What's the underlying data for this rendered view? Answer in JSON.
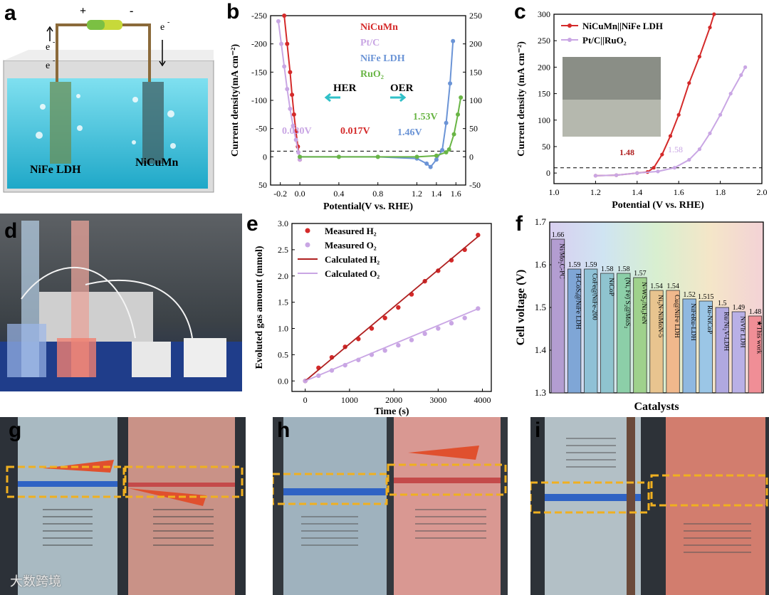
{
  "panel_labels": {
    "a": "a",
    "b": "b",
    "c": "c",
    "d": "d",
    "e": "e",
    "f": "f",
    "g": "g",
    "h": "h",
    "i": "i"
  },
  "panel_a": {
    "plus": "+",
    "minus": "-",
    "e_left": "e",
    "e_left2": "e",
    "e_right": "e",
    "sup": "-",
    "left_label": "NiFe LDH",
    "right_label": "NiCuMn"
  },
  "panel_b": {
    "ylabel": "Current density(mA cm⁻²)",
    "xlabel": "Potential(V vs. RHE)",
    "hor": "HER",
    "oer": "OER",
    "ann": [
      "0.030V",
      "0.017V",
      "1.46V",
      "1.53V"
    ],
    "legend": [
      "NiCuMn",
      "Pt/C",
      "NiFe LDH",
      "RuO₂"
    ]
  },
  "panel_c": {
    "ylabel": "Current density (mA cm⁻²)",
    "xlabel": "Potential (V vs. RHE)",
    "legend": [
      "NiCuMn||NiFe LDH",
      "Pt/C||RuO₂"
    ],
    "ann": [
      "1.48",
      "1.58"
    ]
  },
  "panel_e": {
    "ylabel": "Evoluted gas amount (mmol)",
    "xlabel": "Time (s)",
    "legend": [
      "Measured H₂",
      "Measured O₂",
      "Calculated H₂",
      "Calculated O₂"
    ]
  },
  "panel_f": {
    "ylabel": "Cell voltage (V)",
    "xlabel": "Catalysts"
  },
  "watermark": "大数跨境",
  "chart_data": [
    {
      "panel": "b",
      "type": "line",
      "xlabel": "Potential(V vs. RHE)",
      "ylabel": "Current density(mA cm⁻²)",
      "xlim": [
        -0.3,
        1.7
      ],
      "ylim_left": [
        50,
        -250
      ],
      "ylim_right": [
        -50,
        250
      ],
      "xticks": [
        -0.2,
        0.0,
        0.4,
        0.8,
        1.2,
        1.4,
        1.6
      ],
      "yticks_left": [
        -250,
        -200,
        -150,
        -100,
        -50,
        0,
        50
      ],
      "yticks_right": [
        -50,
        0,
        50,
        100,
        150,
        200,
        250
      ],
      "series": [
        {
          "name": "NiCuMn",
          "color": "#d42a2a",
          "axis": "left",
          "x": [
            -0.16,
            -0.13,
            -0.1,
            -0.08,
            -0.06,
            -0.04,
            -0.02,
            0.0
          ],
          "y": [
            -250,
            -200,
            -150,
            -110,
            -75,
            -45,
            -18,
            5
          ]
        },
        {
          "name": "Pt/C",
          "color": "#c9a6e4",
          "axis": "left",
          "x": [
            -0.22,
            -0.19,
            -0.16,
            -0.13,
            -0.1,
            -0.07,
            -0.04,
            -0.015,
            0.0
          ],
          "y": [
            -240,
            -200,
            -160,
            -120,
            -85,
            -55,
            -30,
            -8,
            5
          ]
        },
        {
          "name": "NiFe LDH",
          "color": "#6b94d6",
          "axis": "right",
          "x": [
            0.0,
            0.4,
            0.8,
            1.2,
            1.3,
            1.34,
            1.4,
            1.46,
            1.5,
            1.54,
            1.57
          ],
          "y": [
            0,
            0,
            0,
            -3,
            -12,
            -18,
            -5,
            12,
            60,
            130,
            205
          ]
        },
        {
          "name": "RuO₂",
          "color": "#69b545",
          "axis": "right",
          "x": [
            0.0,
            0.4,
            0.8,
            1.2,
            1.4,
            1.5,
            1.53,
            1.58,
            1.62,
            1.65
          ],
          "y": [
            0,
            0,
            0,
            0,
            2,
            8,
            13,
            40,
            75,
            105
          ]
        }
      ],
      "annotations": [
        "0.030V",
        "0.017V",
        "1.46V",
        "1.53V"
      ]
    },
    {
      "panel": "c",
      "type": "line",
      "xlabel": "Potential (V vs. RHE)",
      "ylabel": "Current density (mA cm⁻²)",
      "xlim": [
        1.0,
        2.0
      ],
      "ylim": [
        -20,
        300
      ],
      "xticks": [
        1.0,
        1.2,
        1.4,
        1.6,
        1.8,
        2.0
      ],
      "yticks": [
        0,
        50,
        100,
        150,
        200,
        250,
        300
      ],
      "series": [
        {
          "name": "NiCuMn||NiFe LDH",
          "color": "#d42a2a",
          "x": [
            1.2,
            1.3,
            1.4,
            1.45,
            1.48,
            1.52,
            1.56,
            1.6,
            1.65,
            1.7,
            1.75,
            1.77
          ],
          "y": [
            -5,
            -4,
            0,
            2,
            10,
            35,
            70,
            110,
            170,
            220,
            275,
            300
          ]
        },
        {
          "name": "Pt/C||RuO₂",
          "color": "#c9a6e4",
          "x": [
            1.2,
            1.3,
            1.4,
            1.5,
            1.58,
            1.65,
            1.7,
            1.75,
            1.8,
            1.85,
            1.9,
            1.92
          ],
          "y": [
            -5,
            -4,
            0,
            3,
            10,
            25,
            45,
            75,
            110,
            150,
            185,
            200
          ]
        }
      ],
      "annotations": [
        "1.48",
        "1.58"
      ]
    },
    {
      "panel": "e",
      "type": "scatter",
      "xlabel": "Time (s)",
      "ylabel": "Evoluted gas amount (mmol)",
      "xlim": [
        -300,
        4200
      ],
      "ylim": [
        -0.2,
        3.0
      ],
      "xticks": [
        0,
        1000,
        2000,
        3000,
        4000
      ],
      "yticks": [
        0.0,
        0.5,
        1.0,
        1.5,
        2.0,
        2.5,
        3.0
      ],
      "series": [
        {
          "name": "Measured H₂",
          "color": "#d42a2a",
          "marker": true,
          "x": [
            0,
            300,
            600,
            900,
            1200,
            1500,
            1800,
            2100,
            2400,
            2700,
            3000,
            3300,
            3600,
            3900
          ],
          "y": [
            0,
            0.25,
            0.45,
            0.65,
            0.8,
            1.0,
            1.2,
            1.4,
            1.65,
            1.9,
            2.1,
            2.3,
            2.5,
            2.78
          ]
        },
        {
          "name": "Measured O₂",
          "color": "#c9a6e4",
          "marker": true,
          "x": [
            0,
            300,
            600,
            900,
            1200,
            1500,
            1800,
            2100,
            2400,
            2700,
            3000,
            3300,
            3600,
            3900
          ],
          "y": [
            0,
            0.1,
            0.2,
            0.3,
            0.4,
            0.5,
            0.58,
            0.68,
            0.78,
            0.9,
            1.0,
            1.1,
            1.2,
            1.38
          ]
        },
        {
          "name": "Calculated H₂",
          "color": "#b02020",
          "marker": false,
          "x": [
            0,
            3900
          ],
          "y": [
            0,
            2.75
          ]
        },
        {
          "name": "Calculated O₂",
          "color": "#c9a6e4",
          "marker": false,
          "x": [
            0,
            3900
          ],
          "y": [
            0,
            1.375
          ]
        }
      ]
    },
    {
      "panel": "f",
      "type": "bar",
      "ylabel": "Cell voltage (V)",
      "xlabel": "Catalysts",
      "ylim": [
        1.3,
        1.7
      ],
      "yticks": [
        1.3,
        1.4,
        1.5,
        1.6,
        1.7
      ],
      "categories": [
        "Ni/Mo₂C-PC",
        "H-CoSₓ@NiFe LDH",
        "CoFe@NiFe-200",
        "NiCoP",
        "(Ni, Fe) S₂@MoS₂",
        "N-WS₂/Ni₃FeN",
        "Ni₃N-NiMoN-5",
        "Cu@NiFe LDH",
        "NiFeRu-LDH",
        "Ru-NiCoP",
        "Ru/Ni₂V-LDH",
        "NiVIr LDH",
        "★This work"
      ],
      "values": [
        1.66,
        1.59,
        1.59,
        1.58,
        1.58,
        1.57,
        1.54,
        1.54,
        1.52,
        1.515,
        1.5,
        1.49,
        1.48
      ],
      "value_labels": [
        "1.66",
        "1.59",
        "1.59",
        "1.58",
        "1.58",
        "1.57",
        "1.54",
        "1.54",
        "1.52",
        "1.515",
        "1.5",
        "1.49",
        "1.48"
      ],
      "colors": [
        "#b39dd1",
        "#7fa6d6",
        "#8fc1d6",
        "#8fc4cf",
        "#8ccfa8",
        "#9fd18c",
        "#e8c48f",
        "#f0b88c",
        "#8fb8e0",
        "#9bc6e6",
        "#b0a8e0",
        "#b9b0e6",
        "#f08e96"
      ]
    }
  ]
}
